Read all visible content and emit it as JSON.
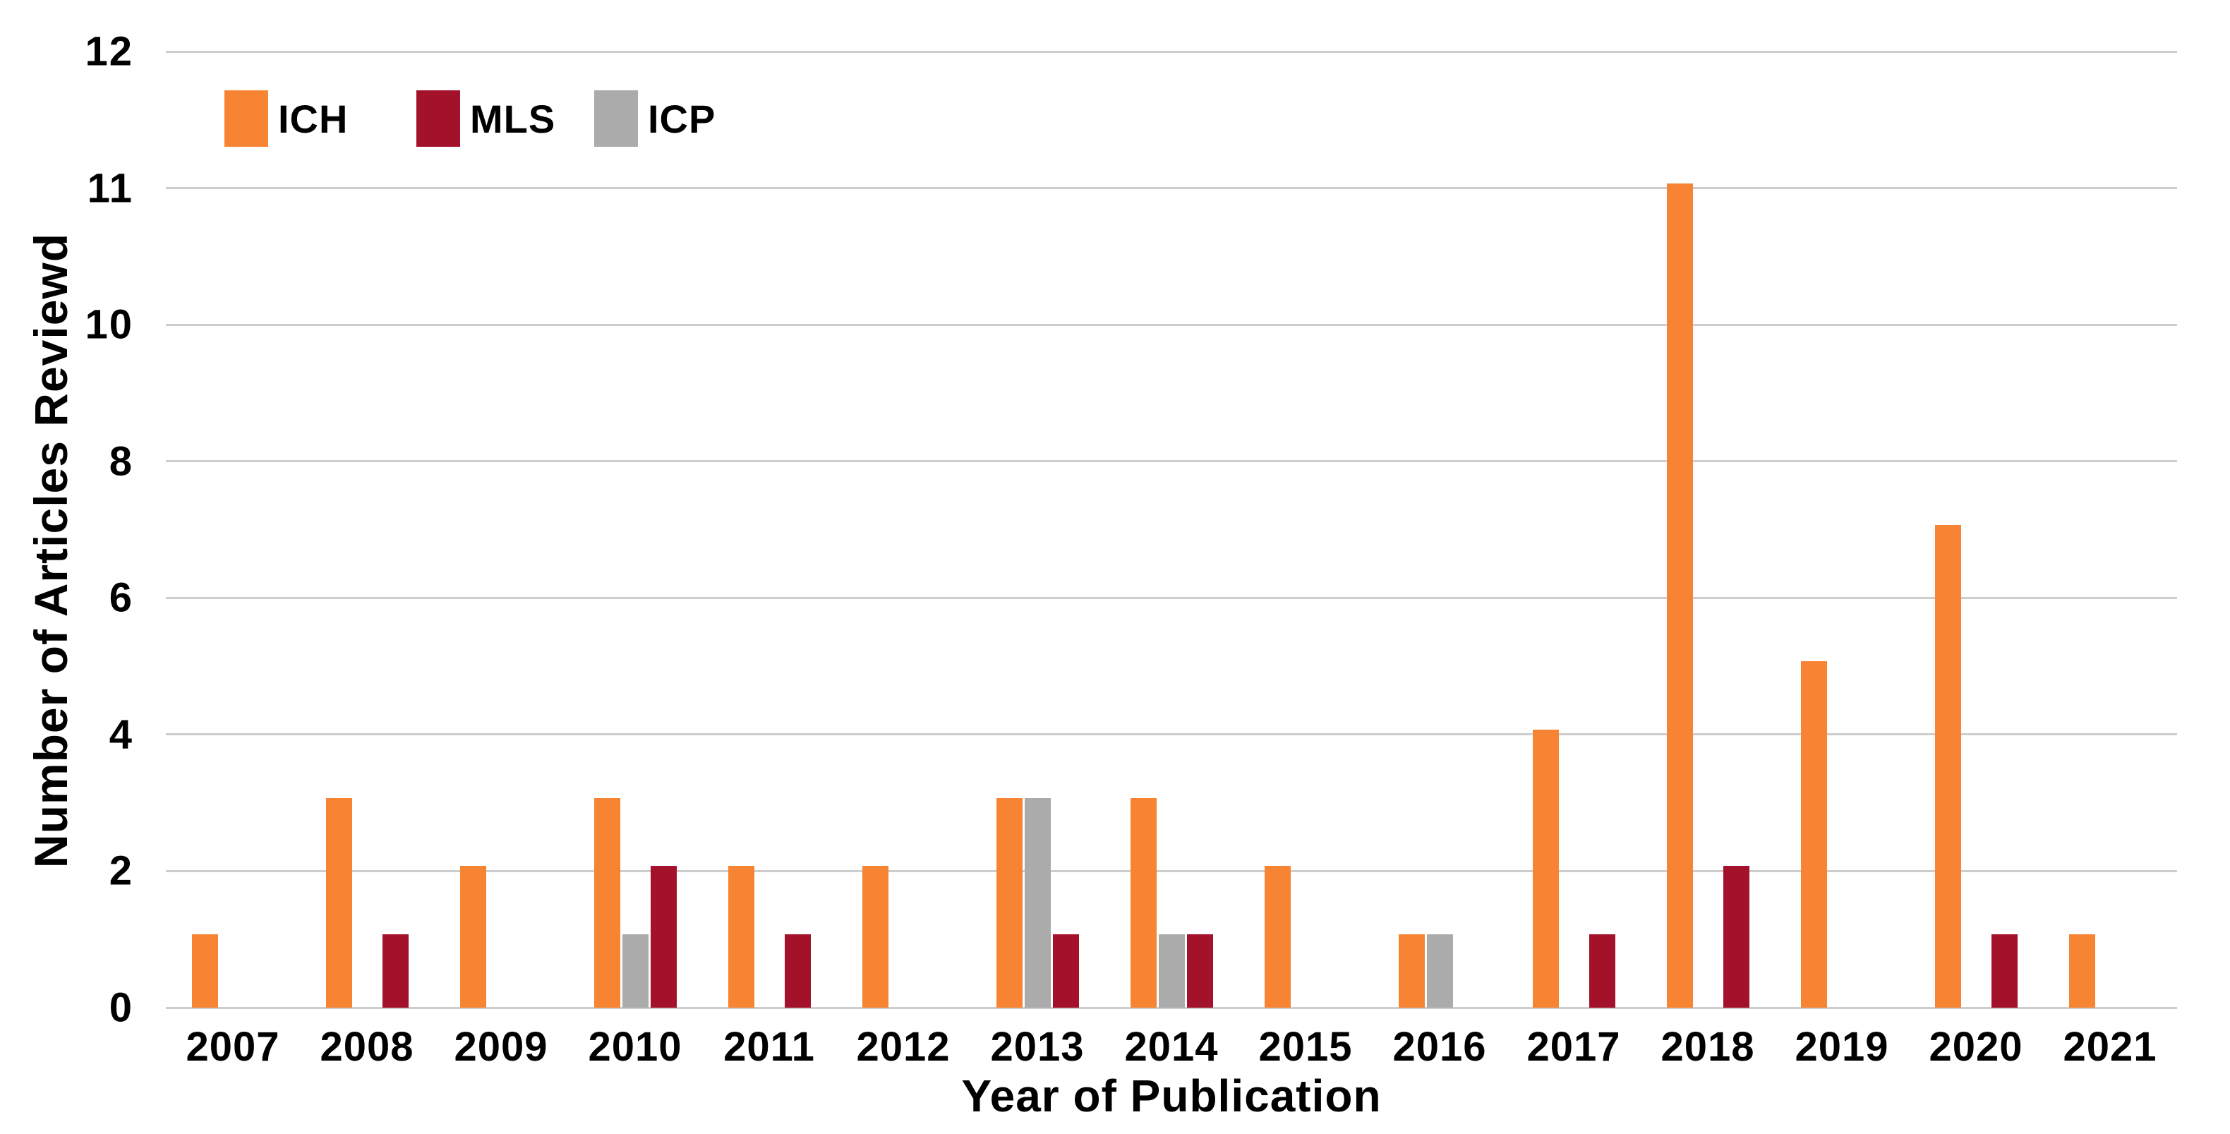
{
  "page": {
    "background": "#FFFFFF",
    "text_color": "#000000"
  },
  "chart_data": {
    "type": "bar",
    "title": "",
    "xlabel": "Year of Publication",
    "ylabel": "Number of Articles Reviewd",
    "categories": [
      "2007",
      "2008",
      "2009",
      "2010",
      "2011",
      "2012",
      "2013",
      "2014",
      "2015",
      "2016",
      "2017",
      "2018",
      "2019",
      "2020",
      "2021"
    ],
    "series": [
      {
        "name": "ICH",
        "color": "#F68432",
        "values": [
          1,
          3,
          2,
          3,
          2,
          2,
          3,
          3,
          2,
          1,
          4,
          11,
          5,
          7,
          1
        ]
      },
      {
        "name": "ICP",
        "color": "#ABABAB",
        "values": [
          0,
          0,
          0,
          1,
          0,
          0,
          3,
          1,
          0,
          1,
          0,
          0,
          0,
          0,
          0
        ]
      },
      {
        "name": "MLS",
        "color": "#A3112A",
        "values": [
          0,
          1,
          0,
          2,
          1,
          0,
          1,
          1,
          0,
          0,
          1,
          2,
          0,
          1,
          0
        ]
      }
    ],
    "legend": [
      {
        "label": "ICH",
        "color": "#F68432"
      },
      {
        "label": "MLS",
        "color": "#A3112A"
      },
      {
        "label": "ICP",
        "color": "#ABABAB"
      }
    ],
    "legend_position": "top-left",
    "y_ticks": [
      0,
      2,
      4,
      6,
      8,
      10,
      11,
      12
    ],
    "ylim": [
      0,
      12
    ],
    "grid": true,
    "grid_color": "#CDCDCD"
  }
}
